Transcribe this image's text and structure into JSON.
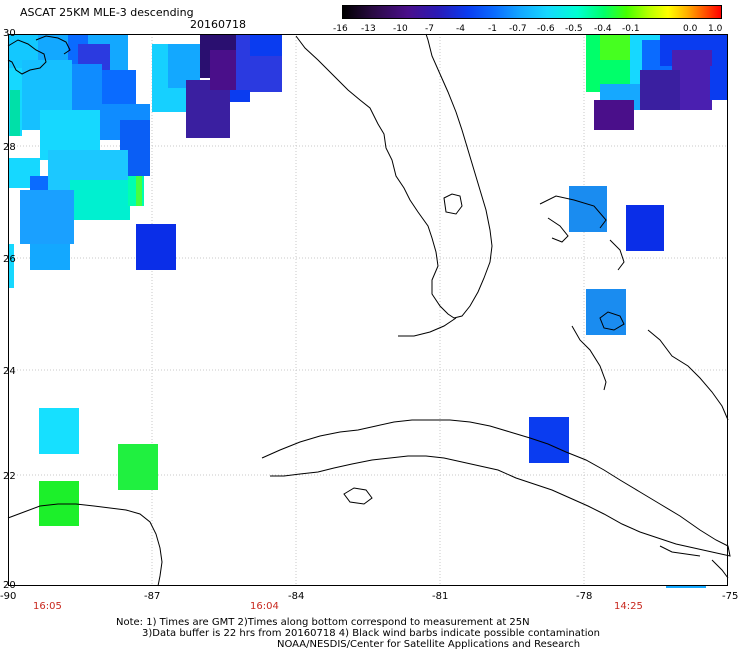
{
  "title": "ASCAT 25KM MLE-3 descending",
  "date": "20160718",
  "colorbar": {
    "labels": [
      "-16",
      "-13",
      "-10",
      "-7",
      "-4",
      "-1",
      "-0.7",
      "-0.6",
      "-0.5",
      "-0.4",
      "-0.1",
      "0.0",
      "1.0"
    ],
    "gradient": [
      "#000000",
      "#4a0f8a",
      "#0a3cf0",
      "#13a8ff",
      "#00ffd2",
      "#46ff00",
      "#ffff00",
      "#ff6000",
      "#ff0000"
    ]
  },
  "lat_labels": [
    "30",
    "28",
    "26",
    "24",
    "22",
    "20"
  ],
  "lon_labels": [
    "-90",
    "-87",
    "-84",
    "-81",
    "-78",
    "-75"
  ],
  "times": [
    "16:05",
    "16:04",
    "14:25"
  ],
  "notes": [
    "Note: 1) Times are GMT 2)Times along bottom correspond to measurement at 25N",
    "3)Data buffer is 22 hrs from 20160718 4) Black wind barbs indicate possible contamination",
    "NOAA/NESDIS/Center for Satellite Applications and Research"
  ],
  "colors": {
    "time_label": "#c8281e",
    "grid": "#c8c8c8"
  }
}
